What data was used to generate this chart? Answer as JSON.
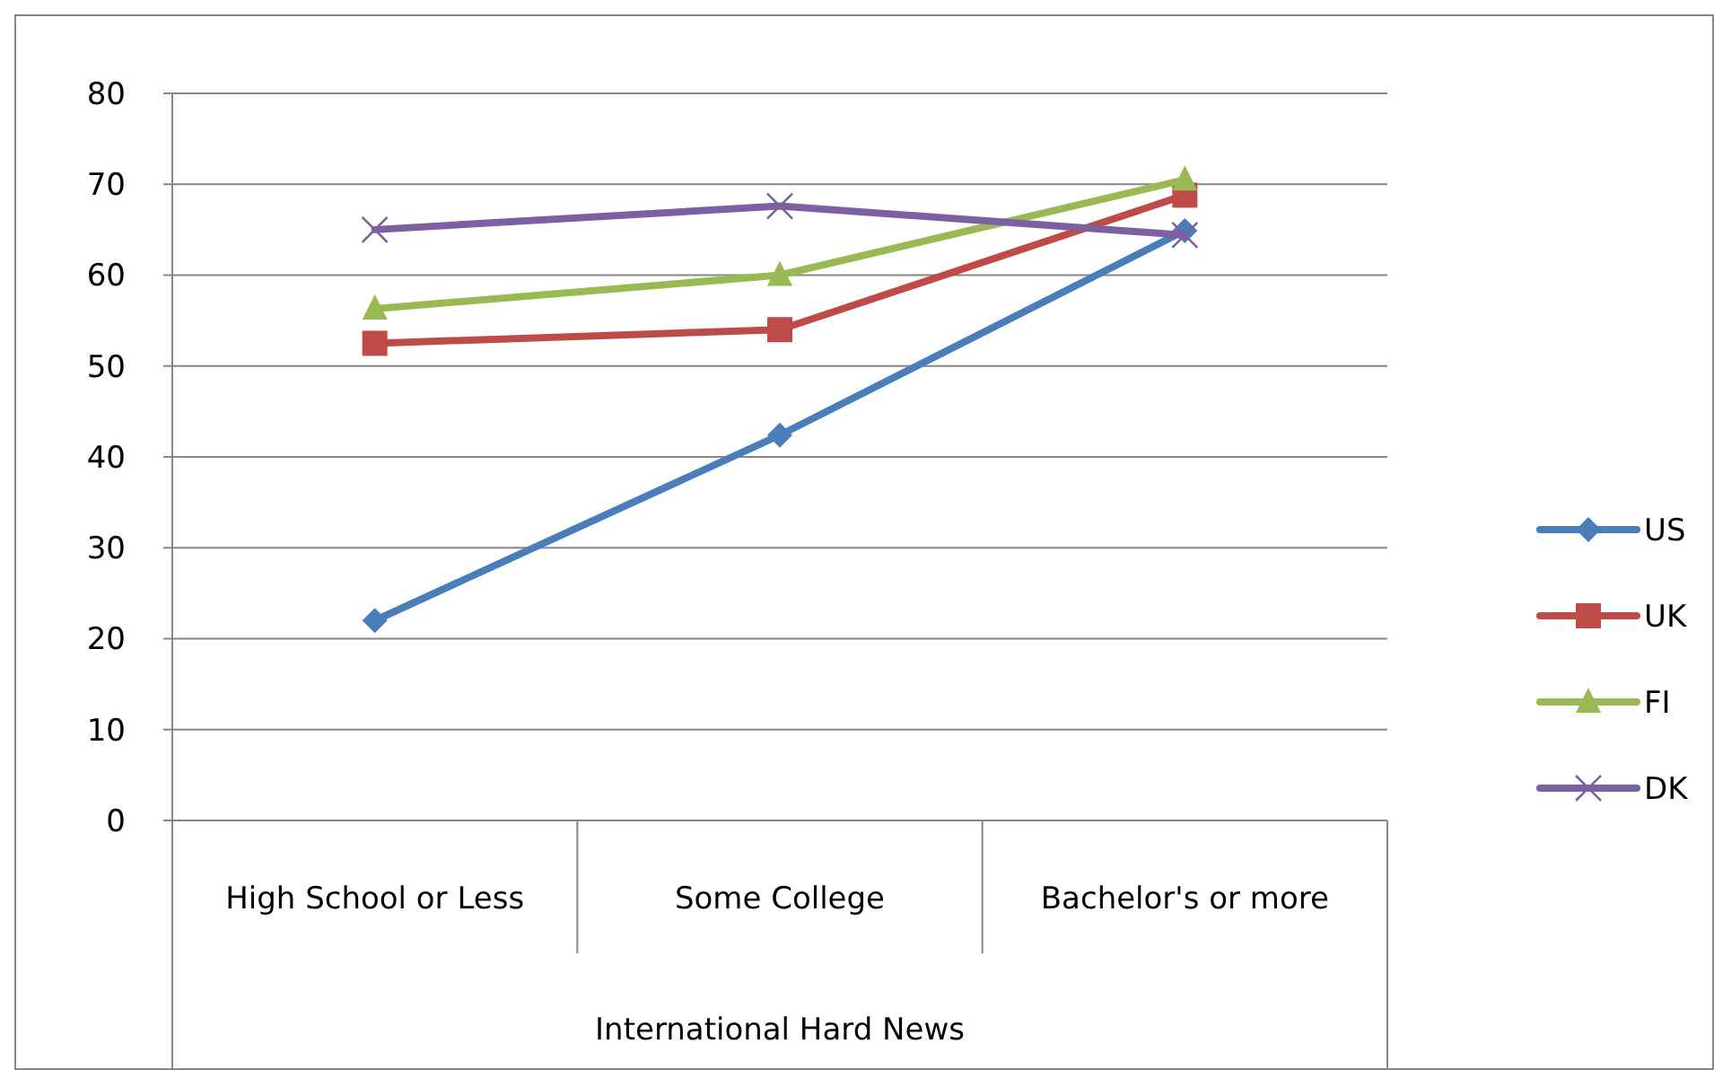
{
  "chart_data": {
    "type": "line",
    "xlabel": "International Hard News",
    "categories": [
      "High School or Less",
      "Some College",
      "Bachelor's or more"
    ],
    "series": [
      {
        "name": "US",
        "color": "#4a7ebb",
        "marker": "diamond",
        "values": [
          22,
          42.4,
          64.9
        ]
      },
      {
        "name": "UK",
        "color": "#be4b48",
        "marker": "square",
        "values": [
          52.5,
          54,
          68.8
        ]
      },
      {
        "name": "FI",
        "color": "#98b954",
        "marker": "triangle",
        "values": [
          56.3,
          60,
          70.5
        ]
      },
      {
        "name": "DK",
        "color": "#7d60a0",
        "marker": "cross",
        "values": [
          65,
          67.6,
          64.4
        ]
      }
    ],
    "ylim": [
      0,
      80
    ],
    "yticks": [
      0,
      10,
      20,
      30,
      40,
      50,
      60,
      70,
      80
    ],
    "grid": "y",
    "legend": "right"
  }
}
